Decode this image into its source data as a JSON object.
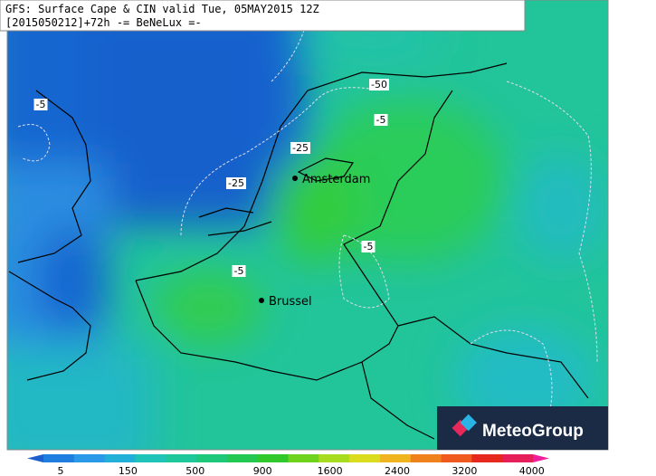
{
  "header": {
    "title": "GFS: Surface Cape & CIN valid Tue, 05MAY2015 12Z",
    "subtitle": "[2015050212]+72h -= BeNeLux =-"
  },
  "cities": [
    {
      "label": "Amsterdam"
    },
    {
      "label": "Brussel"
    }
  ],
  "contour_labels": [
    "-5",
    "-50",
    "-5",
    "-25",
    "-25",
    "-5",
    "-5"
  ],
  "logo": "MeteoGroup",
  "legend": {
    "ticks": [
      5,
      150,
      500,
      900,
      1600,
      2400,
      3200,
      4000
    ],
    "colors": [
      "#1e5fd0",
      "#1f7fe0",
      "#2a9ae8",
      "#22b0d8",
      "#1ec4b8",
      "#1ec89a",
      "#1ec87a",
      "#22c852",
      "#30c82a",
      "#6ed21e",
      "#a8dc1e",
      "#dcdc1e",
      "#f0b41e",
      "#f0821e",
      "#f05a1e",
      "#e6281e",
      "#e61e5a",
      "#f01e9a"
    ]
  }
}
